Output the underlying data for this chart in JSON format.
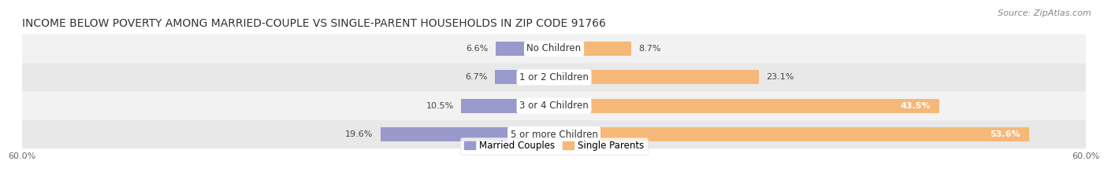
{
  "title": "INCOME BELOW POVERTY AMONG MARRIED-COUPLE VS SINGLE-PARENT HOUSEHOLDS IN ZIP CODE 91766",
  "source": "Source: ZipAtlas.com",
  "categories": [
    "No Children",
    "1 or 2 Children",
    "3 or 4 Children",
    "5 or more Children"
  ],
  "married_values": [
    6.6,
    6.7,
    10.5,
    19.6
  ],
  "single_values": [
    8.7,
    23.1,
    43.5,
    53.6
  ],
  "married_color": "#9999cc",
  "single_color": "#f5b878",
  "row_bg_light": "#f2f2f2",
  "row_bg_dark": "#e8e8e8",
  "axis_limit": 60.0,
  "title_fontsize": 10,
  "source_fontsize": 8,
  "label_fontsize": 8,
  "category_fontsize": 8.5,
  "tick_fontsize": 8,
  "legend_fontsize": 8.5,
  "bar_height": 0.5,
  "figsize": [
    14.06,
    2.33
  ],
  "dpi": 100
}
